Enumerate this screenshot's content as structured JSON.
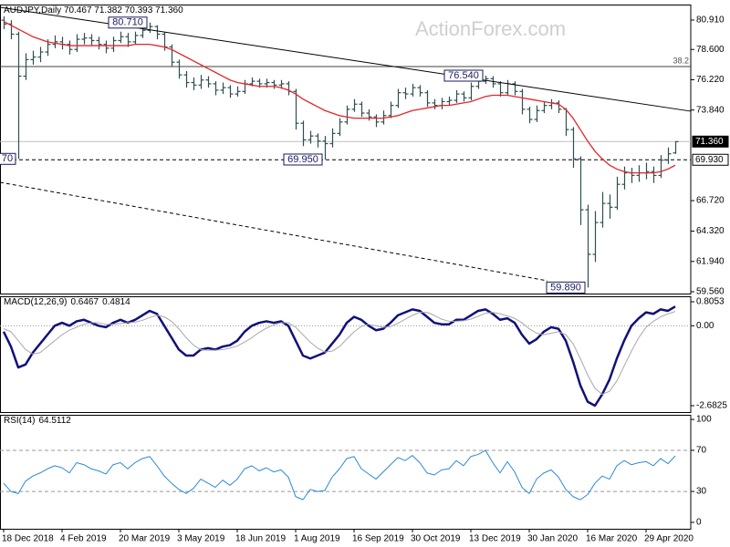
{
  "chart_data": [
    {
      "type": "ohlc",
      "title": "AUDJPY,Daily  70.467 71.382 70.393 71.360",
      "watermark": "ActionForex.com",
      "color": "#2f4f4f",
      "categories": [
        "18 Dec 2018",
        null,
        null,
        null,
        null,
        null,
        null,
        null,
        "4 Feb 2019",
        null,
        null,
        null,
        null,
        null,
        null,
        null,
        "20 Mar 2019",
        null,
        null,
        null,
        null,
        null,
        null,
        null,
        "3 May 2019",
        null,
        null,
        null,
        null,
        null,
        null,
        null,
        "18 Jun 2019",
        null,
        null,
        null,
        null,
        null,
        null,
        null,
        "1 Aug 2019",
        null,
        null,
        null,
        null,
        null,
        null,
        null,
        "16 Sep 2019",
        null,
        null,
        null,
        null,
        null,
        null,
        null,
        "30 Oct 2019",
        null,
        null,
        null,
        null,
        null,
        null,
        null,
        "13 Dec 2019",
        null,
        null,
        null,
        null,
        null,
        null,
        null,
        "30 Jan 2020",
        null,
        null,
        null,
        null,
        null,
        null,
        null,
        "16 Mar 2020",
        null,
        null,
        null,
        null,
        null,
        null,
        null,
        "29 Apr 2020",
        null,
        null,
        null,
        null
      ],
      "bars": {
        "open": [
          80.9,
          80.6,
          79.8,
          76.5,
          77.8,
          78.0,
          78.4,
          79.0,
          79.2,
          79.0,
          78.6,
          79.4,
          79.5,
          79.3,
          79.0,
          78.7,
          79.3,
          79.6,
          79.2,
          79.7,
          80.1,
          80.4,
          79.8,
          78.8,
          77.6,
          76.6,
          76.0,
          75.8,
          76.2,
          75.9,
          75.4,
          75.6,
          75.1,
          75.3,
          75.9,
          76.1,
          75.9,
          76.0,
          75.8,
          75.9,
          75.3,
          72.8,
          71.5,
          71.8,
          71.4,
          71.2,
          72.0,
          72.9,
          73.9,
          74.3,
          73.6,
          73.3,
          72.9,
          73.4,
          74.2,
          75.2,
          75.1,
          75.6,
          75.2,
          74.4,
          74.2,
          74.5,
          74.6,
          75.1,
          74.8,
          75.7,
          76.1,
          76.3,
          75.9,
          75.2,
          75.9,
          75.3,
          73.9,
          73.1,
          73.8,
          74.2,
          74.4,
          73.9,
          72.3,
          70.0,
          66.0,
          62.5,
          65.0,
          66.5,
          66.2,
          68.0,
          68.9,
          68.7,
          68.9,
          69.0,
          68.7,
          69.9,
          70.467
        ],
        "high": [
          81.2,
          80.9,
          80.0,
          78.3,
          78.5,
          78.8,
          79.4,
          79.7,
          79.6,
          79.3,
          79.8,
          79.9,
          79.8,
          79.6,
          79.3,
          79.6,
          80.0,
          79.9,
          80.0,
          80.4,
          80.71,
          80.5,
          80.0,
          79.0,
          77.8,
          76.9,
          76.4,
          76.6,
          76.5,
          76.1,
          76.0,
          75.8,
          75.7,
          76.2,
          76.4,
          76.3,
          76.3,
          76.2,
          76.2,
          76.1,
          75.5,
          73.0,
          72.2,
          72.0,
          71.8,
          72.4,
          73.2,
          74.2,
          74.7,
          74.5,
          73.9,
          73.5,
          73.8,
          74.5,
          75.5,
          75.6,
          75.9,
          75.8,
          75.4,
          74.7,
          74.8,
          74.9,
          75.4,
          75.3,
          76.0,
          76.4,
          76.54,
          76.5,
          76.1,
          76.2,
          76.1,
          75.5,
          74.1,
          74.2,
          74.5,
          74.7,
          74.6,
          74.0,
          72.5,
          70.2,
          66.4,
          65.9,
          67.4,
          67.2,
          68.6,
          69.4,
          69.3,
          69.5,
          69.7,
          69.4,
          70.3,
          70.9,
          71.382
        ],
        "low": [
          80.2,
          79.4,
          70.0,
          76.2,
          77.4,
          77.6,
          78.1,
          78.7,
          78.6,
          78.2,
          78.4,
          79.0,
          78.9,
          78.6,
          78.3,
          78.4,
          79.1,
          78.8,
          79.0,
          79.5,
          79.9,
          79.4,
          78.5,
          77.3,
          76.3,
          75.6,
          75.4,
          75.5,
          75.6,
          75.0,
          75.1,
          74.8,
          74.9,
          75.1,
          75.7,
          75.6,
          75.6,
          75.5,
          75.5,
          75.0,
          72.3,
          71.0,
          71.2,
          70.9,
          69.95,
          70.9,
          71.8,
          72.7,
          73.7,
          73.3,
          73.0,
          72.5,
          72.7,
          73.2,
          74.0,
          74.7,
          74.9,
          74.9,
          74.1,
          73.9,
          73.9,
          74.2,
          74.4,
          74.5,
          74.6,
          75.5,
          75.9,
          75.6,
          74.9,
          75.0,
          75.0,
          73.5,
          72.8,
          72.9,
          73.6,
          73.9,
          73.6,
          71.8,
          69.3,
          64.8,
          59.89,
          61.9,
          64.6,
          65.3,
          66.0,
          67.6,
          68.1,
          68.2,
          68.4,
          68.1,
          68.5,
          69.6,
          70.393
        ],
        "close": [
          80.6,
          79.8,
          76.5,
          77.8,
          78.0,
          78.4,
          79.0,
          79.2,
          79.0,
          78.6,
          79.4,
          79.5,
          79.3,
          79.0,
          78.7,
          79.3,
          79.6,
          79.2,
          79.7,
          80.1,
          80.4,
          79.8,
          78.8,
          77.6,
          76.6,
          76.0,
          75.8,
          76.2,
          75.9,
          75.4,
          75.6,
          75.1,
          75.3,
          75.9,
          76.1,
          75.9,
          76.0,
          75.8,
          75.9,
          75.3,
          72.8,
          71.5,
          71.8,
          71.4,
          71.2,
          72.0,
          72.9,
          73.9,
          74.3,
          73.6,
          73.3,
          72.9,
          73.4,
          74.2,
          75.2,
          75.1,
          75.6,
          75.2,
          74.4,
          74.2,
          74.5,
          74.6,
          75.1,
          74.8,
          75.7,
          76.1,
          76.3,
          75.9,
          75.2,
          75.9,
          75.3,
          73.9,
          73.1,
          73.8,
          74.2,
          74.4,
          73.9,
          72.3,
          70.0,
          66.0,
          62.5,
          65.0,
          66.5,
          66.2,
          68.0,
          68.9,
          68.7,
          68.9,
          69.0,
          68.7,
          69.9,
          70.4,
          71.36
        ]
      },
      "ma": {
        "color": "#e3262b",
        "values": [
          80.8,
          80.5,
          80.2,
          79.9,
          79.6,
          79.4,
          79.2,
          79.1,
          79.0,
          78.9,
          78.9,
          78.9,
          78.9,
          78.9,
          78.9,
          78.9,
          78.9,
          78.9,
          79.0,
          79.0,
          79.0,
          78.9,
          78.8,
          78.6,
          78.3,
          78.0,
          77.7,
          77.4,
          77.1,
          76.8,
          76.5,
          76.2,
          76.0,
          75.9,
          75.8,
          75.7,
          75.7,
          75.7,
          75.6,
          75.4,
          75.1,
          74.7,
          74.4,
          74.1,
          73.8,
          73.6,
          73.4,
          73.3,
          73.2,
          73.2,
          73.2,
          73.2,
          73.2,
          73.3,
          73.4,
          73.6,
          73.8,
          73.9,
          74.0,
          74.1,
          74.2,
          74.2,
          74.3,
          74.4,
          74.5,
          74.7,
          74.9,
          75.0,
          75.0,
          75.0,
          74.9,
          74.8,
          74.7,
          74.6,
          74.5,
          74.4,
          74.3,
          73.9,
          73.2,
          72.3,
          71.4,
          70.6,
          70.0,
          69.5,
          69.2,
          69.0,
          68.9,
          68.9,
          68.9,
          68.9,
          69.0,
          69.2,
          69.5
        ]
      },
      "ylim": [
        59.417,
        82.128
      ],
      "yticks": [
        {
          "value": 80.91,
          "label": "80.910"
        },
        {
          "value": 78.6,
          "label": "78.600"
        },
        {
          "value": 76.22,
          "label": "76.220"
        },
        {
          "value": 73.84,
          "label": "73.840"
        },
        {
          "value": 66.72,
          "label": "66.720"
        },
        {
          "value": 64.32,
          "label": "64.320"
        },
        {
          "value": 61.94,
          "label": "61.940"
        },
        {
          "value": 59.56,
          "label": "59.560"
        }
      ],
      "fib_levels": [
        {
          "value": 77.26,
          "ratio": 38.2,
          "color": "#404040"
        }
      ],
      "price_lines": [
        {
          "value": 71.36,
          "label": "71.360",
          "style": "solid",
          "color": "#c0c0c0",
          "box": "dark"
        },
        {
          "value": 69.93,
          "label": "69.930",
          "style": "dashed",
          "color": "#000000",
          "box": "light"
        }
      ],
      "trendlines": [
        {
          "points": [
            [
              -0.5,
              81.91
            ],
            [
              94.1,
              73.75
            ]
          ],
          "style": "solid",
          "color": "#000000"
        },
        {
          "points": [
            [
              -0.5,
              68.16
            ],
            [
              74.5,
              60.42
            ]
          ],
          "style": "dashed",
          "color": "#000000"
        }
      ],
      "annotations": [
        {
          "value": 70,
          "label": "70",
          "edge": "low"
        },
        {
          "value": 80.71,
          "label": "80.710",
          "edge": "high"
        },
        {
          "value": 69.95,
          "label": "69.950",
          "edge": "low"
        },
        {
          "value": 76.54,
          "label": "76.540",
          "edge": "high"
        },
        {
          "value": 59.89,
          "label": "59.890",
          "edge": "low"
        }
      ]
    },
    {
      "type": "line",
      "title": "MACD(12,26,9)",
      "series": [
        {
          "color": "#10107a",
          "width": 2.5,
          "values": [
            -0.2,
            -0.7,
            -1.4,
            -1.3,
            -0.9,
            -0.6,
            -0.3,
            0.0,
            0.1,
            0.0,
            0.15,
            0.2,
            0.1,
            0.0,
            -0.05,
            0.1,
            0.2,
            0.1,
            0.2,
            0.35,
            0.5,
            0.4,
            0.0,
            -0.4,
            -0.8,
            -1.0,
            -1.0,
            -0.8,
            -0.75,
            -0.8,
            -0.7,
            -0.65,
            -0.5,
            -0.2,
            0.0,
            0.1,
            0.15,
            0.1,
            0.15,
            0.0,
            -0.5,
            -1.0,
            -1.1,
            -1.0,
            -0.9,
            -0.6,
            -0.3,
            0.1,
            0.3,
            0.2,
            0.0,
            -0.15,
            -0.1,
            0.1,
            0.35,
            0.45,
            0.55,
            0.5,
            0.3,
            0.1,
            0.05,
            0.05,
            0.2,
            0.2,
            0.35,
            0.5,
            0.55,
            0.4,
            0.2,
            0.25,
            0.1,
            -0.3,
            -0.6,
            -0.45,
            -0.2,
            -0.05,
            -0.1,
            -0.5,
            -1.2,
            -2.0,
            -2.55,
            -2.6825,
            -2.3,
            -1.8,
            -1.1,
            -0.5,
            0.0,
            0.25,
            0.45,
            0.4,
            0.55,
            0.5,
            0.6467
          ]
        },
        {
          "color": "#a8a8a8",
          "width": 1,
          "values": [
            -0.1,
            -0.2,
            -0.5,
            -0.8,
            -0.95,
            -0.9,
            -0.7,
            -0.5,
            -0.3,
            -0.15,
            -0.05,
            0.05,
            0.1,
            0.1,
            0.05,
            0.05,
            0.08,
            0.1,
            0.12,
            0.18,
            0.28,
            0.35,
            0.3,
            0.15,
            -0.1,
            -0.4,
            -0.65,
            -0.8,
            -0.82,
            -0.82,
            -0.8,
            -0.75,
            -0.68,
            -0.55,
            -0.4,
            -0.22,
            -0.08,
            0.03,
            0.1,
            0.1,
            -0.05,
            -0.3,
            -0.55,
            -0.75,
            -0.88,
            -0.85,
            -0.7,
            -0.45,
            -0.2,
            -0.02,
            0.05,
            0.0,
            -0.05,
            -0.03,
            0.08,
            0.22,
            0.35,
            0.45,
            0.45,
            0.35,
            0.22,
            0.15,
            0.15,
            0.17,
            0.22,
            0.32,
            0.42,
            0.45,
            0.4,
            0.33,
            0.25,
            0.1,
            -0.1,
            -0.25,
            -0.3,
            -0.25,
            -0.2,
            -0.3,
            -0.6,
            -1.1,
            -1.65,
            -2.1,
            -2.3,
            -2.2,
            -1.85,
            -1.35,
            -0.85,
            -0.4,
            -0.05,
            0.15,
            0.3,
            0.4,
            0.4814
          ]
        }
      ],
      "ylim": [
        -2.897,
        0.989
      ],
      "yticks": [
        0.8053,
        {
          "value": 0,
          "label": "0.00"
        },
        -2.6825
      ],
      "levels": [
        0
      ],
      "level_style": "dotted"
    },
    {
      "type": "line",
      "title": "RSI(14)",
      "series": [
        {
          "color": "#2b8ad6",
          "width": 1,
          "values": [
            38,
            30,
            28,
            40,
            45,
            48,
            52,
            55,
            53,
            48,
            58,
            56,
            52,
            50,
            47,
            56,
            58,
            52,
            58,
            62,
            64,
            55,
            45,
            38,
            32,
            28,
            33,
            42,
            38,
            34,
            41,
            36,
            42,
            52,
            55,
            50,
            53,
            49,
            51,
            44,
            25,
            22,
            32,
            30,
            31,
            44,
            52,
            62,
            64,
            52,
            47,
            42,
            49,
            56,
            63,
            60,
            65,
            58,
            48,
            46,
            51,
            52,
            60,
            55,
            64,
            66,
            70,
            58,
            48,
            59,
            49,
            34,
            28,
            42,
            48,
            51,
            44,
            32,
            25,
            22,
            27,
            38,
            45,
            42,
            55,
            60,
            56,
            58,
            59,
            55,
            62,
            57,
            64.5112
          ]
        }
      ],
      "ylim": [
        -6.25,
        104.5
      ],
      "yticks": [
        100,
        70,
        30,
        0
      ],
      "levels": [
        70,
        30
      ],
      "level_style": "dashed"
    }
  ]
}
